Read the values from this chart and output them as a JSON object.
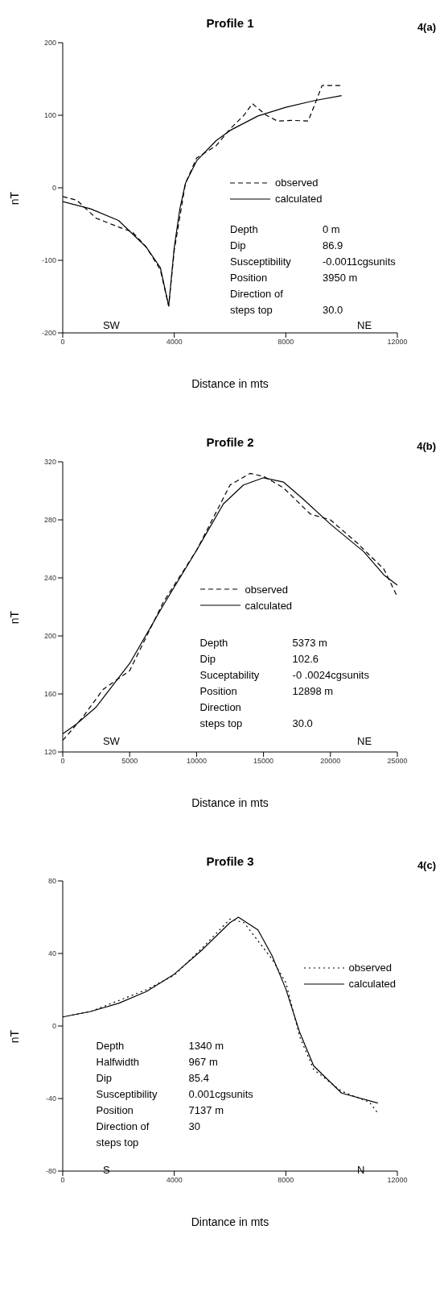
{
  "chart_data": [
    {
      "type": "line",
      "title": "Profile 1",
      "xlabel": "Distance in mts",
      "ylabel": "nT",
      "xlim": [
        0,
        12000
      ],
      "xticks": [
        0,
        4000,
        8000,
        12000
      ],
      "ylim": [
        -200,
        200
      ],
      "yticks": [
        -200,
        -100,
        0,
        100,
        200
      ],
      "grid": false,
      "legend": "right",
      "marker": "none",
      "annotations": [
        "4(a)",
        "SW",
        "NE",
        "Depth\t0 m",
        "Dip\t86.9",
        "Susceptibility\t-0.0011cgsunits",
        "Position\t3950 m",
        "Direction of",
        "steps top\t30.0"
      ],
      "series": [
        {
          "name": "observed",
          "color": "#000000",
          "line_style": "dashed",
          "x": [
            0,
            500,
            1200,
            2000,
            2500,
            3000,
            3500,
            3800,
            4000,
            4400,
            4800,
            5500,
            6000,
            6500,
            6800,
            7300,
            7700,
            8200,
            8800,
            9000,
            9300,
            10000
          ],
          "values": [
            -12,
            -17,
            -42,
            -54,
            -61,
            -82,
            -113,
            -163,
            -86,
            6,
            41,
            58,
            81,
            100,
            116,
            100,
            92,
            93,
            92,
            111,
            141,
            141
          ]
        },
        {
          "name": "calculated",
          "color": "#000000",
          "line_style": "solid",
          "x": [
            0,
            1000,
            2000,
            3000,
            3500,
            3800,
            4000,
            4200,
            4400,
            4800,
            5500,
            6000,
            7000,
            8000,
            9000,
            10000
          ],
          "values": [
            -19,
            -29,
            -45,
            -82,
            -110,
            -163,
            -82,
            -29,
            6,
            37,
            65,
            79,
            99,
            111,
            120,
            127
          ]
        }
      ]
    },
    {
      "type": "line",
      "title": "Profile 2",
      "xlabel": "Distance in mts",
      "ylabel": "nT",
      "xlim": [
        0,
        25000
      ],
      "xticks": [
        0,
        5000,
        10000,
        15000,
        20000,
        25000
      ],
      "ylim": [
        120,
        320
      ],
      "yticks": [
        120,
        160,
        200,
        240,
        280,
        320
      ],
      "grid": false,
      "legend": "center",
      "marker": "none",
      "annotations": [
        "4(b)",
        "SW",
        "NE",
        "Depth\t5373 m",
        "Dip\t102.6",
        "Suceptability\t-0 .0024cgsunits",
        "Position\t12898 m",
        "Direction",
        "steps top\t30.0"
      ],
      "series": [
        {
          "name": "observed",
          "color": "#000000",
          "line_style": "dashed",
          "x": [
            0,
            1500,
            3000,
            5000,
            7500,
            10000,
            12500,
            14000,
            15000,
            16500,
            18500,
            20000,
            22000,
            24000,
            25000
          ],
          "values": [
            128,
            144,
            163,
            176,
            223,
            259,
            304,
            312,
            310,
            302,
            284,
            280,
            264,
            246,
            227
          ]
        },
        {
          "name": "calculated",
          "color": "#000000",
          "line_style": "solid",
          "x": [
            0,
            1000,
            2500,
            5000,
            7500,
            10000,
            12000,
            13500,
            15000,
            16500,
            18000,
            20000,
            22500,
            24000,
            25000
          ],
          "values": [
            132.5,
            139,
            151,
            181,
            221,
            259,
            291,
            304,
            309,
            306,
            294,
            277,
            258,
            242,
            235
          ]
        }
      ]
    },
    {
      "type": "line",
      "title": "Profile 3",
      "xlabel": "Dintance in mts",
      "ylabel": "nT",
      "xlim": [
        0,
        12000
      ],
      "xticks": [
        0,
        4000,
        8000,
        12000
      ],
      "ylim": [
        -80,
        80
      ],
      "yticks": [
        -80,
        -40,
        0,
        40,
        80
      ],
      "grid": false,
      "legend": "top right",
      "marker": "none",
      "annotations": [
        "4(c)",
        "S",
        "N",
        "Depth\t1340 m",
        "Halfwidth\t967 m",
        "Dip\t85.4",
        "Susceptibility\t0.001cgsunits",
        "Position\t7137 m",
        "Direction of\t30",
        "steps top"
      ],
      "series": [
        {
          "name": "observed",
          "color": "#000000",
          "line_style": "dotted",
          "x": [
            0,
            1000,
            2000,
            3000,
            4000,
            5000,
            6000,
            6500,
            7500,
            8000,
            8500,
            9000,
            10000,
            11000,
            11300
          ],
          "values": [
            5,
            8,
            14,
            20,
            28,
            43,
            59,
            57,
            37,
            24,
            -6,
            -24,
            -36,
            -42,
            -48
          ]
        },
        {
          "name": "calculated",
          "color": "#000000",
          "line_style": "solid",
          "x": [
            0,
            1000,
            2000,
            3000,
            4000,
            5000,
            6000,
            6300,
            7000,
            7500,
            8000,
            8500,
            9000,
            10000,
            11300
          ],
          "values": [
            5,
            8,
            12.5,
            19,
            28.6,
            42,
            57,
            60,
            53,
            39,
            20.5,
            -3.6,
            -22,
            -37,
            -42.5
          ]
        }
      ]
    }
  ]
}
